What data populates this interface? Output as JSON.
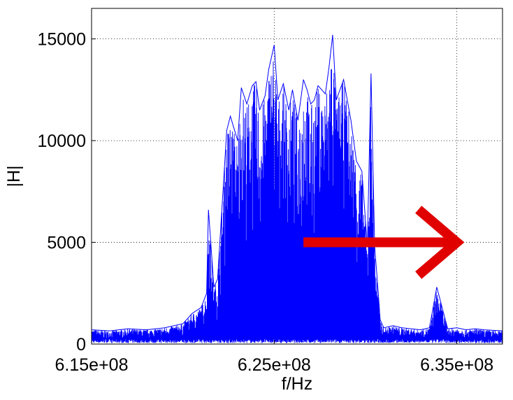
{
  "chart_data": {
    "type": "line",
    "title": "",
    "xlabel": "f/Hz",
    "ylabel": "|H|",
    "xlim": [
      615000000,
      637500000
    ],
    "ylim": [
      0,
      16500
    ],
    "grid": true,
    "x_ticks": [
      {
        "value": 615000000,
        "label": "6.15e+08"
      },
      {
        "value": 625000000,
        "label": "6.25e+08"
      },
      {
        "value": 635000000,
        "label": "6.35e+08"
      }
    ],
    "y_ticks": [
      {
        "value": 0,
        "label": "0"
      },
      {
        "value": 5000,
        "label": "5000"
      },
      {
        "value": 10000,
        "label": "10000"
      },
      {
        "value": 15000,
        "label": "15000"
      }
    ],
    "series_color": "#0000ff",
    "annotation": {
      "type": "arrow",
      "color": "#e00000",
      "from": [
        626600000,
        5000
      ],
      "to": [
        635000000,
        5000
      ]
    },
    "series": [
      {
        "x": [
          615000000,
          616000000,
          617000000,
          618000000,
          619000000,
          620000000,
          620500000,
          621000000,
          621300000,
          621400000,
          621700000,
          621900000,
          622400000,
          622600000,
          623000000,
          623200000,
          623500000,
          623800000,
          624000000,
          624200000,
          624500000,
          624700000,
          625000000,
          625200000,
          625500000,
          625800000,
          626000000,
          626300000,
          626600000,
          626800000,
          627000000,
          627200000,
          627400000,
          627800000,
          628000000,
          628200000,
          628400000,
          628600000,
          628800000,
          629000000,
          629200000,
          629500000,
          629800000,
          630100000,
          630300000,
          630500000,
          630700000,
          630800000,
          631000000,
          631500000,
          632000000,
          632500000,
          633000000,
          633500000,
          633900000,
          634500000,
          635000000,
          635500000,
          636000000,
          636500000,
          637500000
        ],
        "y": [
          700,
          650,
          750,
          700,
          800,
          1000,
          1500,
          1800,
          2500,
          6600,
          2800,
          3200,
          10500,
          11200,
          10000,
          12600,
          11800,
          12700,
          12900,
          11500,
          12200,
          13500,
          14700,
          12000,
          12800,
          11500,
          12500,
          11000,
          13000,
          12500,
          11800,
          12000,
          12700,
          12300,
          13600,
          15200,
          12000,
          12500,
          13000,
          12000,
          11000,
          9000,
          8500,
          4800,
          13300,
          4800,
          2500,
          1200,
          800,
          900,
          800,
          750,
          700,
          800,
          2800,
          750,
          800,
          700,
          750,
          700,
          650
        ]
      }
    ]
  }
}
